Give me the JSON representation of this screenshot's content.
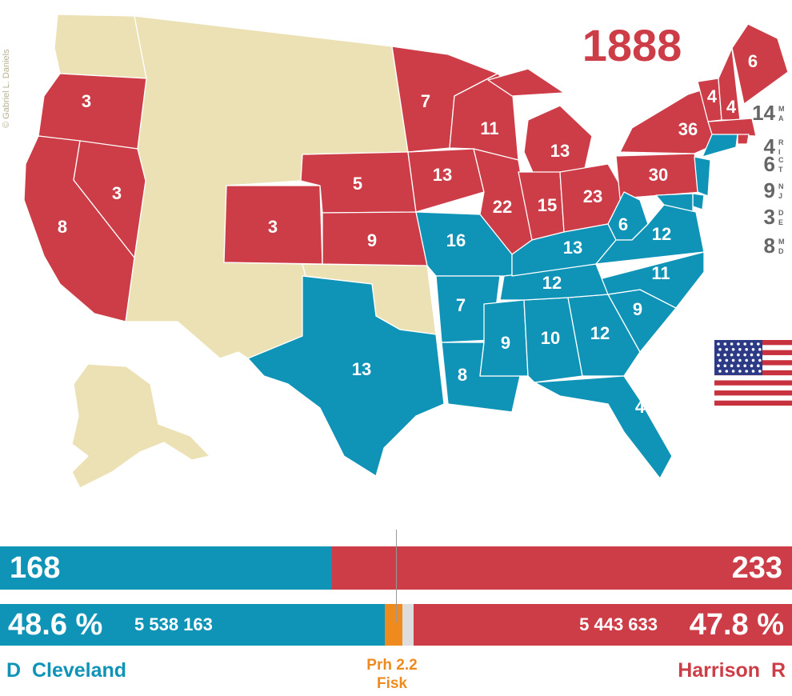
{
  "title": "1888",
  "credit": "© Gabriel L. Daniels",
  "colors": {
    "democrat": "#0f93b7",
    "republican": "#cc3d47",
    "territory": "#ece0b5",
    "prohibition": "#ef8a1e",
    "other": "#dddddd"
  },
  "states": [
    {
      "abbr": "OR",
      "votes": "3",
      "party": "R"
    },
    {
      "abbr": "CA",
      "votes": "8",
      "party": "R"
    },
    {
      "abbr": "NV",
      "votes": "3",
      "party": "R"
    },
    {
      "abbr": "CO",
      "votes": "3",
      "party": "R"
    },
    {
      "abbr": "NE",
      "votes": "5",
      "party": "R"
    },
    {
      "abbr": "KS",
      "votes": "9",
      "party": "R"
    },
    {
      "abbr": "MN",
      "votes": "7",
      "party": "R"
    },
    {
      "abbr": "IA",
      "votes": "13",
      "party": "R"
    },
    {
      "abbr": "WI",
      "votes": "11",
      "party": "R"
    },
    {
      "abbr": "MI",
      "votes": "13",
      "party": "R"
    },
    {
      "abbr": "IL",
      "votes": "22",
      "party": "R"
    },
    {
      "abbr": "IN",
      "votes": "15",
      "party": "R"
    },
    {
      "abbr": "OH",
      "votes": "23",
      "party": "R"
    },
    {
      "abbr": "PA",
      "votes": "30",
      "party": "R"
    },
    {
      "abbr": "NY",
      "votes": "36",
      "party": "R"
    },
    {
      "abbr": "VT",
      "votes": "4",
      "party": "R"
    },
    {
      "abbr": "NH",
      "votes": "4",
      "party": "R"
    },
    {
      "abbr": "ME",
      "votes": "6",
      "party": "R"
    },
    {
      "abbr": "TX",
      "votes": "13",
      "party": "D"
    },
    {
      "abbr": "MO",
      "votes": "16",
      "party": "D"
    },
    {
      "abbr": "AR",
      "votes": "7",
      "party": "D"
    },
    {
      "abbr": "LA",
      "votes": "8",
      "party": "D"
    },
    {
      "abbr": "MS",
      "votes": "9",
      "party": "D"
    },
    {
      "abbr": "AL",
      "votes": "10",
      "party": "D"
    },
    {
      "abbr": "GA",
      "votes": "12",
      "party": "D"
    },
    {
      "abbr": "FL",
      "votes": "4",
      "party": "D"
    },
    {
      "abbr": "SC",
      "votes": "9",
      "party": "D"
    },
    {
      "abbr": "NC",
      "votes": "11",
      "party": "D"
    },
    {
      "abbr": "TN",
      "votes": "12",
      "party": "D"
    },
    {
      "abbr": "KY",
      "votes": "13",
      "party": "D"
    },
    {
      "abbr": "WV",
      "votes": "6",
      "party": "D"
    },
    {
      "abbr": "VA",
      "votes": "12",
      "party": "D"
    }
  ],
  "northeast_labels": [
    {
      "votes": "14",
      "abbr_top": "M",
      "abbr_bottom": "A"
    },
    {
      "votes": "4",
      "abbr_top": "R",
      "abbr_bottom": "I"
    },
    {
      "votes": "6",
      "abbr_top": "C",
      "abbr_bottom": "T"
    },
    {
      "votes": "9",
      "abbr_top": "N",
      "abbr_bottom": "J"
    },
    {
      "votes": "3",
      "abbr_top": "D",
      "abbr_bottom": "E"
    },
    {
      "votes": "8",
      "abbr_top": "M",
      "abbr_bottom": "D"
    }
  ],
  "results": {
    "democrat": {
      "electoral_votes": "168",
      "percent": "48.6 %",
      "popular_votes": "5 538 163",
      "party_letter": "D",
      "candidate": "Cleveland"
    },
    "republican": {
      "electoral_votes": "233",
      "percent": "47.8 %",
      "popular_votes": "5 443 633",
      "party_letter": "R",
      "candidate": "Harrison"
    },
    "third": {
      "party": "Prh",
      "percent": "2.2",
      "candidate": "Fisk"
    },
    "electoral_share": {
      "democrat": 0.419,
      "republican": 0.581
    },
    "popular_share": {
      "democrat": 0.486,
      "prohibition": 0.022,
      "other": 0.014,
      "republican": 0.478
    }
  }
}
